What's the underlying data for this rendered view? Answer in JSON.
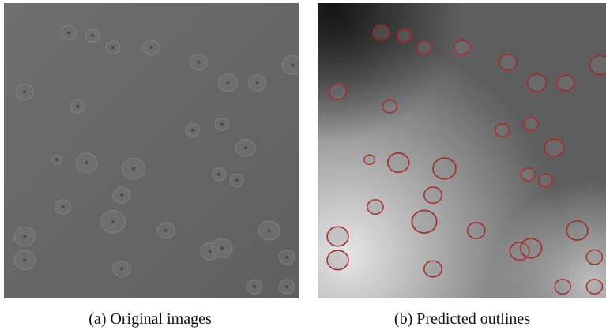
{
  "figure": {
    "panels": [
      {
        "caption": "(a) Original images"
      },
      {
        "caption": "(b) Predicted outlines"
      }
    ]
  }
}
